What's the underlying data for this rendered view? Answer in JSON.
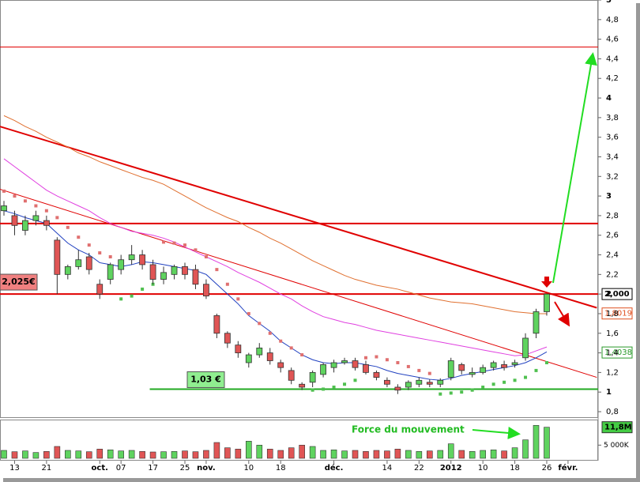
{
  "chart_data": {
    "type": "candlestick",
    "categories": [
      null,
      "13",
      null,
      null,
      "21",
      null,
      null,
      null,
      null,
      "oct.",
      null,
      "07",
      null,
      null,
      "17",
      null,
      null,
      "25",
      null,
      "nov.",
      null,
      null,
      null,
      "10",
      null,
      null,
      "18",
      null,
      null,
      null,
      null,
      "déc.",
      null,
      null,
      null,
      null,
      "14",
      null,
      null,
      "22",
      null,
      null,
      "2012",
      null,
      null,
      "10",
      null,
      null,
      "18",
      null,
      null,
      "26",
      null,
      "févr.",
      null,
      null
    ],
    "open": [
      2.85,
      2.8,
      2.65,
      2.75,
      2.75,
      2.55,
      2.2,
      2.28,
      2.38,
      2.1,
      2.15,
      2.25,
      2.35,
      2.4,
      2.3,
      2.15,
      2.2,
      2.28,
      2.25,
      2.1,
      1.78,
      1.6,
      1.48,
      1.3,
      1.38,
      1.4,
      1.3,
      1.22,
      1.08,
      1.1,
      1.18,
      1.25,
      1.3,
      1.32,
      1.28,
      1.2,
      1.12,
      1.05,
      1.05,
      1.08,
      1.1,
      1.08,
      1.15,
      1.28,
      1.18,
      1.2,
      1.25,
      1.28,
      1.28,
      1.35,
      1.6,
      1.82,
      null,
      null,
      null,
      null
    ],
    "high": [
      2.95,
      2.85,
      2.8,
      2.85,
      2.8,
      2.58,
      2.3,
      2.45,
      2.42,
      2.15,
      2.32,
      2.4,
      2.5,
      2.45,
      2.35,
      2.28,
      2.3,
      2.32,
      2.3,
      2.15,
      1.8,
      1.62,
      1.52,
      1.4,
      1.5,
      1.45,
      1.33,
      1.25,
      1.1,
      1.22,
      1.3,
      1.33,
      1.35,
      1.35,
      1.32,
      1.22,
      1.15,
      1.08,
      1.12,
      1.15,
      1.13,
      1.14,
      1.35,
      1.3,
      1.25,
      1.28,
      1.32,
      1.32,
      1.33,
      1.6,
      1.85,
      2.0,
      null,
      null,
      null,
      null
    ],
    "low": [
      2.8,
      2.6,
      2.6,
      2.7,
      2.65,
      2.0,
      2.15,
      2.25,
      2.2,
      1.95,
      2.1,
      2.2,
      2.3,
      2.25,
      2.1,
      2.1,
      2.15,
      2.15,
      2.05,
      1.95,
      1.55,
      1.45,
      1.35,
      1.25,
      1.35,
      1.28,
      1.2,
      1.08,
      1.02,
      1.05,
      1.15,
      1.2,
      1.28,
      1.22,
      1.18,
      1.12,
      1.05,
      0.98,
      1.02,
      1.05,
      1.05,
      1.05,
      1.12,
      1.18,
      1.15,
      1.18,
      1.22,
      1.22,
      1.25,
      1.32,
      1.55,
      1.78,
      null,
      null,
      null,
      null
    ],
    "close": [
      2.9,
      2.7,
      2.75,
      2.8,
      2.7,
      2.2,
      2.28,
      2.35,
      2.25,
      2.0,
      2.3,
      2.35,
      2.4,
      2.3,
      2.15,
      2.22,
      2.28,
      2.2,
      2.1,
      1.98,
      1.6,
      1.5,
      1.4,
      1.38,
      1.45,
      1.32,
      1.25,
      1.12,
      1.05,
      1.2,
      1.28,
      1.3,
      1.32,
      1.25,
      1.2,
      1.15,
      1.08,
      1.02,
      1.1,
      1.12,
      1.08,
      1.12,
      1.32,
      1.22,
      1.2,
      1.25,
      1.3,
      1.25,
      1.3,
      1.55,
      1.82,
      2.0,
      null,
      null,
      null,
      null
    ],
    "up_color": "#5fd35f",
    "down_color": "#e05555",
    "volume": [
      3,
      2.5,
      2.8,
      2.2,
      2.6,
      4.5,
      3,
      2.8,
      2.5,
      3.5,
      3.2,
      2.8,
      3,
      2.6,
      2.4,
      2.5,
      2.6,
      2.8,
      2.5,
      3,
      6,
      4,
      3.5,
      6.5,
      5,
      3.5,
      3,
      4,
      5,
      4.5,
      3,
      3.2,
      2.8,
      3,
      2.6,
      3,
      2.8,
      3.5,
      3,
      2.6,
      2.8,
      3,
      5.5,
      3,
      2.6,
      3,
      3.2,
      2.8,
      4,
      7,
      12.5,
      11.8,
      null,
      null,
      null,
      null
    ],
    "lines": [
      {
        "color": "#2040c0",
        "values": [
          2.85,
          2.82,
          2.78,
          2.75,
          2.72,
          2.62,
          2.52,
          2.45,
          2.4,
          2.32,
          2.3,
          2.28,
          2.3,
          2.33,
          2.32,
          2.3,
          2.28,
          2.26,
          2.24,
          2.2,
          2.1,
          2.0,
          1.9,
          1.78,
          1.7,
          1.62,
          1.52,
          1.45,
          1.38,
          1.33,
          1.3,
          1.29,
          1.3,
          1.3,
          1.28,
          1.26,
          1.22,
          1.19,
          1.17,
          1.15,
          1.13,
          1.12,
          1.14,
          1.17,
          1.19,
          1.21,
          1.23,
          1.25,
          1.27,
          1.3,
          1.35,
          1.41,
          null,
          null,
          null,
          null
        ]
      },
      {
        "color": "#e040e0",
        "values": [
          3.38,
          3.3,
          3.22,
          3.14,
          3.06,
          3.0,
          2.95,
          2.9,
          2.85,
          2.78,
          2.72,
          2.68,
          2.64,
          2.62,
          2.6,
          2.57,
          2.53,
          2.48,
          2.43,
          2.38,
          2.33,
          2.28,
          2.22,
          2.17,
          2.12,
          2.06,
          2.0,
          1.95,
          1.88,
          1.82,
          1.77,
          1.74,
          1.71,
          1.69,
          1.66,
          1.63,
          1.61,
          1.59,
          1.57,
          1.55,
          1.53,
          1.51,
          1.49,
          1.47,
          1.45,
          1.43,
          1.41,
          1.39,
          1.37,
          1.38,
          1.42,
          1.46,
          null,
          null,
          null,
          null
        ]
      },
      {
        "color": "#e07030",
        "values": [
          3.82,
          3.77,
          3.71,
          3.66,
          3.6,
          3.55,
          3.5,
          3.44,
          3.4,
          3.35,
          3.31,
          3.27,
          3.23,
          3.19,
          3.16,
          3.12,
          3.06,
          3.0,
          2.94,
          2.88,
          2.83,
          2.78,
          2.74,
          2.68,
          2.63,
          2.57,
          2.52,
          2.46,
          2.4,
          2.34,
          2.29,
          2.24,
          2.19,
          2.15,
          2.12,
          2.09,
          2.07,
          2.05,
          2.02,
          1.99,
          1.96,
          1.94,
          1.92,
          1.91,
          1.9,
          1.88,
          1.86,
          1.84,
          1.82,
          1.81,
          1.8,
          1.8,
          null,
          null,
          null,
          null
        ]
      }
    ],
    "sar": [
      3.05,
      3.0,
      2.95,
      2.9,
      2.85,
      2.78,
      2.68,
      2.58,
      2.5,
      2.42,
      2.38,
      1.95,
      1.98,
      2.05,
      2.1,
      2.53,
      2.52,
      2.5,
      2.45,
      2.38,
      2.25,
      2.1,
      1.95,
      1.8,
      1.7,
      1.6,
      1.52,
      1.45,
      1.38,
      1.02,
      1.03,
      1.05,
      1.08,
      1.12,
      1.35,
      1.36,
      1.33,
      1.3,
      1.26,
      1.22,
      1.19,
      0.98,
      0.99,
      1.0,
      1.02,
      1.05,
      1.08,
      1.1,
      1.12,
      1.15,
      1.22,
      1.3,
      null,
      null,
      null,
      null
    ],
    "sar_colors": {
      "above": "#e07070",
      "below": "#50c050"
    },
    "ylim": [
      0.8,
      5
    ],
    "yticks": [
      {
        "value": 0.8,
        "label": "0,8"
      },
      1,
      {
        "value": 1.2,
        "label": "1,2"
      },
      {
        "value": 1.4,
        "label": "1,4"
      },
      {
        "value": 1.6,
        "label": "1,6"
      },
      {
        "value": 1.8,
        "label": "1,8"
      },
      2,
      {
        "value": 2.2,
        "label": "2,2"
      },
      {
        "value": 2.4,
        "label": "2,4"
      },
      {
        "value": 2.6,
        "label": "2,6"
      },
      {
        "value": 2.8,
        "label": "2,8"
      },
      3,
      {
        "value": 3.2,
        "label": "3,2"
      },
      {
        "value": 3.4,
        "label": "3,4"
      },
      {
        "value": 3.6,
        "label": "3,6"
      },
      {
        "value": 3.8,
        "label": "3,8"
      },
      4,
      {
        "value": 4.2,
        "label": "4,2"
      },
      {
        "value": 4.4,
        "label": "4,4"
      },
      {
        "value": 4.6,
        "label": "4,6"
      },
      {
        "value": 4.8,
        "label": "4,8"
      },
      5
    ],
    "volume_ylim": [
      0,
      13.5
    ],
    "volume_yticks": [
      {
        "value": 5,
        "label": "5 000K"
      }
    ],
    "hlines": [
      {
        "value": 4.52,
        "color": "#e00000",
        "width": 1
      },
      {
        "value": 2.72,
        "color": "#e00000",
        "width": 2
      },
      {
        "value": 2.0,
        "color": "#e00000",
        "width": 2
      },
      {
        "value": 1.03,
        "color": "#22aa22",
        "width": 2,
        "from": 13.7
      }
    ],
    "trendlines": [
      {
        "x": [
          -0.4,
          55.7
        ],
        "y": [
          3.71,
          1.86
        ],
        "color": "#e00000",
        "width": 2
      },
      {
        "x": [
          -0.4,
          55.7
        ],
        "y": [
          3.07,
          1.15
        ],
        "color": "#e00000",
        "width": 1
      }
    ],
    "level_tags": [
      {
        "value": 2.025,
        "label": "2,025€",
        "color": "#f08080"
      },
      {
        "value": 1.03,
        "label": "1,03 €",
        "color": "#90ee90"
      }
    ],
    "price_tags": [
      {
        "value": 2.0,
        "label": "2,000",
        "color": "#000000"
      },
      {
        "value": 1.8019,
        "label": "1,8019",
        "color": "#e05020"
      },
      {
        "value": 1.4038,
        "label": "1,4038",
        "color": "#2a9a2a"
      }
    ],
    "volume_tag": {
      "value": 11.8,
      "label": "11,8M",
      "color": "#44cc44"
    },
    "annotation": "Force du mouvement"
  }
}
